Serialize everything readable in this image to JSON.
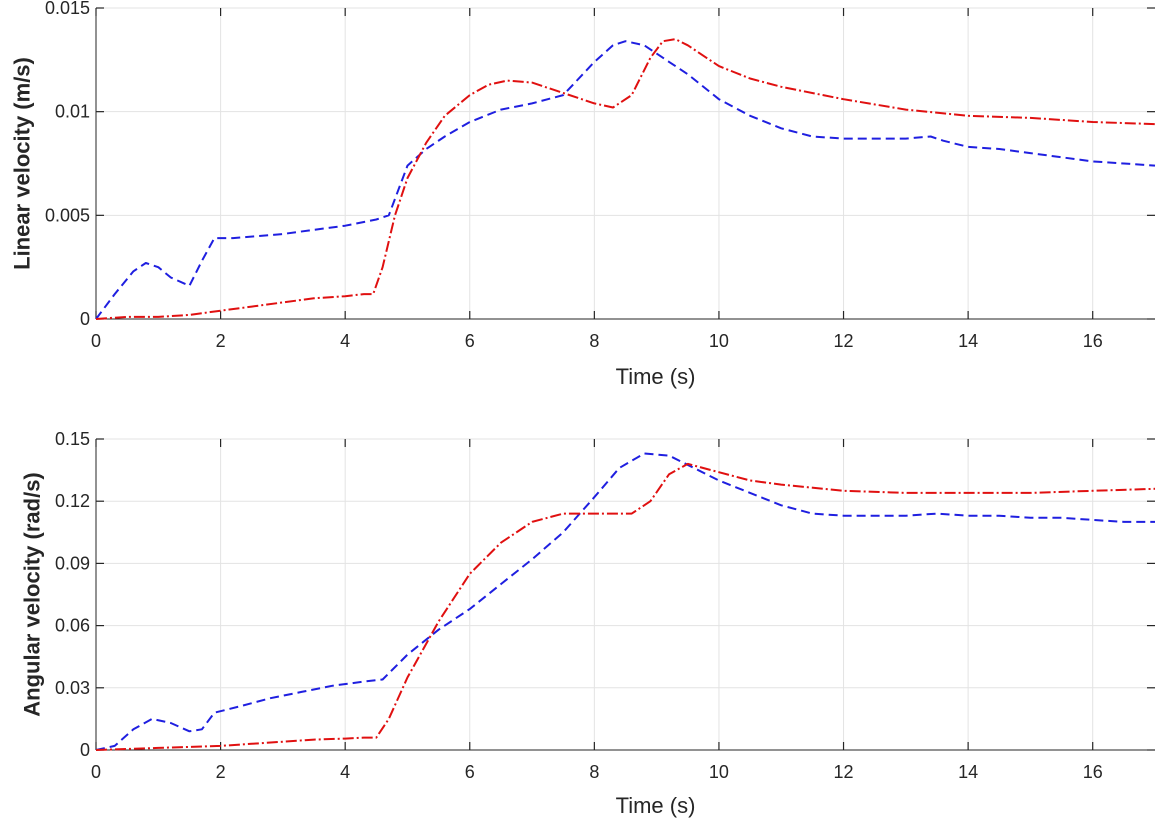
{
  "chart_data": [
    {
      "type": "line",
      "title": "",
      "xlabel": "Time (s)",
      "ylabel": "Linear velocity (m/s)",
      "xlim": [
        0,
        17
      ],
      "ylim": [
        0,
        0.015
      ],
      "xticks": [
        0,
        2,
        4,
        6,
        8,
        10,
        12,
        14,
        16
      ],
      "yticks": [
        0,
        0.005,
        0.01,
        0.015
      ],
      "ytick_labels": [
        "0",
        "0.005",
        "0.01",
        "0.015"
      ],
      "grid": true,
      "series": [
        {
          "name": "blue-dashed",
          "color": "#1f1fe0",
          "style": "dashed",
          "x": [
            0,
            0.3,
            0.6,
            0.8,
            1.0,
            1.2,
            1.5,
            1.7,
            1.9,
            2.2,
            2.6,
            3.0,
            3.5,
            4.0,
            4.5,
            4.7,
            5.0,
            5.3,
            5.6,
            6.0,
            6.5,
            7.0,
            7.5,
            8.0,
            8.3,
            8.5,
            8.8,
            9.2,
            9.5,
            10.0,
            10.5,
            11.0,
            11.5,
            12.0,
            12.5,
            13.0,
            13.4,
            13.6,
            14.0,
            14.5,
            15.0,
            15.5,
            16.0,
            16.5,
            17.0
          ],
          "y": [
            0,
            0.0012,
            0.0023,
            0.0027,
            0.0025,
            0.002,
            0.0016,
            0.0028,
            0.0039,
            0.0039,
            0.004,
            0.0041,
            0.0043,
            0.0045,
            0.0048,
            0.005,
            0.0074,
            0.0082,
            0.0088,
            0.0095,
            0.0101,
            0.0104,
            0.0108,
            0.0124,
            0.0132,
            0.0134,
            0.0132,
            0.0124,
            0.0118,
            0.0106,
            0.0098,
            0.0092,
            0.0088,
            0.0087,
            0.0087,
            0.0087,
            0.0088,
            0.0086,
            0.0083,
            0.0082,
            0.008,
            0.0078,
            0.0076,
            0.0075,
            0.0074
          ]
        },
        {
          "name": "red-dashdot",
          "color": "#e01010",
          "style": "dashdot",
          "x": [
            0,
            0.5,
            1.0,
            1.5,
            2.0,
            2.5,
            3.0,
            3.5,
            4.0,
            4.3,
            4.45,
            4.6,
            4.8,
            5.0,
            5.3,
            5.6,
            6.0,
            6.3,
            6.6,
            7.0,
            7.5,
            8.0,
            8.3,
            8.6,
            8.9,
            9.1,
            9.3,
            9.5,
            10.0,
            10.5,
            11.0,
            12.0,
            13.0,
            14.0,
            15.0,
            16.0,
            17.0
          ],
          "y": [
            0,
            0.0001,
            0.0001,
            0.0002,
            0.0004,
            0.0006,
            0.0008,
            0.001,
            0.0011,
            0.0012,
            0.0012,
            0.0025,
            0.005,
            0.0068,
            0.0085,
            0.0098,
            0.0108,
            0.0113,
            0.0115,
            0.0114,
            0.0109,
            0.0104,
            0.0102,
            0.0108,
            0.0126,
            0.0134,
            0.0135,
            0.0132,
            0.0122,
            0.0116,
            0.0112,
            0.0106,
            0.0101,
            0.0098,
            0.0097,
            0.0095,
            0.0094
          ]
        }
      ]
    },
    {
      "type": "line",
      "title": "",
      "xlabel": "Time (s)",
      "ylabel": "Angular velocity (rad/s)",
      "xlim": [
        0,
        17
      ],
      "ylim": [
        0,
        0.15
      ],
      "xticks": [
        0,
        2,
        4,
        6,
        8,
        10,
        12,
        14,
        16
      ],
      "yticks": [
        0,
        0.03,
        0.06,
        0.09,
        0.12,
        0.15
      ],
      "ytick_labels": [
        "0",
        "0.03",
        "0.06",
        "0.09",
        "0.12",
        "0.15"
      ],
      "grid": true,
      "series": [
        {
          "name": "blue-dashed",
          "color": "#1f1fe0",
          "style": "dashed",
          "x": [
            0,
            0.3,
            0.6,
            0.9,
            1.2,
            1.5,
            1.7,
            1.9,
            2.3,
            2.8,
            3.3,
            3.8,
            4.3,
            4.6,
            5.0,
            5.5,
            6.0,
            6.5,
            7.0,
            7.5,
            8.0,
            8.4,
            8.8,
            9.2,
            9.6,
            10.0,
            10.5,
            11.0,
            11.5,
            12.0,
            12.5,
            13.0,
            13.5,
            14.0,
            14.5,
            15.0,
            15.5,
            16.0,
            16.5,
            17.0
          ],
          "y": [
            0,
            0.002,
            0.01,
            0.015,
            0.013,
            0.009,
            0.01,
            0.018,
            0.021,
            0.025,
            0.028,
            0.031,
            0.033,
            0.034,
            0.046,
            0.058,
            0.068,
            0.08,
            0.092,
            0.105,
            0.122,
            0.136,
            0.143,
            0.142,
            0.136,
            0.13,
            0.124,
            0.118,
            0.114,
            0.113,
            0.113,
            0.113,
            0.114,
            0.113,
            0.113,
            0.112,
            0.112,
            0.111,
            0.11,
            0.11
          ]
        },
        {
          "name": "red-dashdot",
          "color": "#e01010",
          "style": "dashdot",
          "x": [
            0,
            0.5,
            1.0,
            1.5,
            2.0,
            2.5,
            3.0,
            3.5,
            4.0,
            4.3,
            4.5,
            4.7,
            5.0,
            5.5,
            6.0,
            6.5,
            7.0,
            7.5,
            7.9,
            8.3,
            8.6,
            8.9,
            9.2,
            9.5,
            10.0,
            10.5,
            11.0,
            12.0,
            13.0,
            14.0,
            15.0,
            16.0,
            17.0
          ],
          "y": [
            0,
            0.0005,
            0.001,
            0.0015,
            0.002,
            0.003,
            0.004,
            0.005,
            0.0055,
            0.006,
            0.006,
            0.015,
            0.035,
            0.062,
            0.085,
            0.1,
            0.11,
            0.114,
            0.114,
            0.114,
            0.114,
            0.12,
            0.133,
            0.138,
            0.134,
            0.13,
            0.128,
            0.125,
            0.124,
            0.124,
            0.124,
            0.125,
            0.126
          ]
        }
      ]
    }
  ]
}
